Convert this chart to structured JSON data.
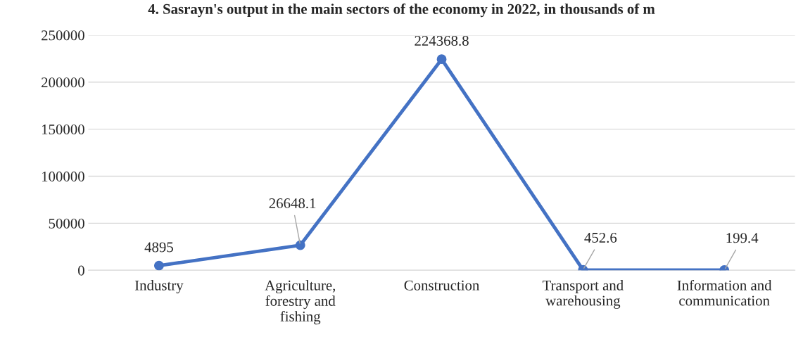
{
  "chart_data": {
    "type": "line",
    "title": "4. Sasrayn's output in the main sectors of the economy in 2022, in thousands of m",
    "categories": [
      "Industry",
      "Agriculture,\nforestry and\nfishing",
      "Construction",
      "Transport and\nwarehousing",
      "Information and\ncommunication"
    ],
    "series": [
      {
        "color": "#4472c4",
        "values": [
          4895,
          26648.1,
          224368.8,
          452.6,
          199.4
        ]
      }
    ],
    "ylim": [
      0,
      250000
    ],
    "yticks": [
      0,
      50000,
      100000,
      150000,
      200000,
      250000
    ],
    "grid": "y",
    "marker": "circle",
    "line_style": "solid",
    "data_labels": true
  }
}
